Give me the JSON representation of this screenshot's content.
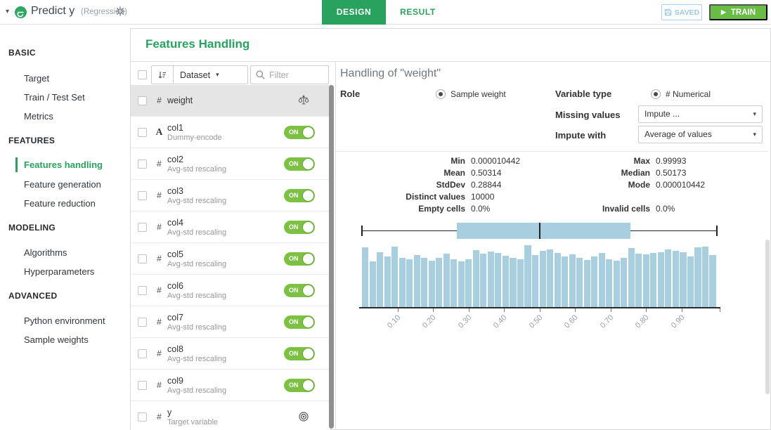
{
  "top_bar": {
    "model_title": "Predict y",
    "model_subtitle": "(Regression)",
    "tabs": [
      {
        "label": "DESIGN",
        "active": true
      },
      {
        "label": "RESULT",
        "active": false
      }
    ],
    "saved_label": "SAVED",
    "train_label": "TRAIN"
  },
  "sidebar": {
    "sections": [
      {
        "label": "BASIC",
        "items": [
          {
            "label": "Target"
          },
          {
            "label": "Train / Test Set"
          },
          {
            "label": "Metrics"
          }
        ]
      },
      {
        "label": "FEATURES",
        "items": [
          {
            "label": "Features handling",
            "active": true
          },
          {
            "label": "Feature generation"
          },
          {
            "label": "Feature reduction"
          }
        ]
      },
      {
        "label": "MODELING",
        "items": [
          {
            "label": "Algorithms"
          },
          {
            "label": "Hyperparameters"
          }
        ]
      },
      {
        "label": "ADVANCED",
        "items": [
          {
            "label": "Python environment"
          },
          {
            "label": "Sample weights"
          }
        ]
      }
    ]
  },
  "panel": {
    "title": "Features Handling"
  },
  "feature_list": {
    "sort_by": "Dataset",
    "filter_placeholder": "Filter",
    "items": [
      {
        "name": "weight",
        "type": "numeric",
        "subtitle": "",
        "right": "scale",
        "selected": true
      },
      {
        "name": "col1",
        "type": "text",
        "subtitle": "Dummy-encode",
        "right": "toggle",
        "toggle": "ON"
      },
      {
        "name": "col2",
        "type": "numeric",
        "subtitle": "Avg-std rescaling",
        "right": "toggle",
        "toggle": "ON"
      },
      {
        "name": "col3",
        "type": "numeric",
        "subtitle": "Avg-std rescaling",
        "right": "toggle",
        "toggle": "ON"
      },
      {
        "name": "col4",
        "type": "numeric",
        "subtitle": "Avg-std rescaling",
        "right": "toggle",
        "toggle": "ON"
      },
      {
        "name": "col5",
        "type": "numeric",
        "subtitle": "Avg-std rescaling",
        "right": "toggle",
        "toggle": "ON"
      },
      {
        "name": "col6",
        "type": "numeric",
        "subtitle": "Avg-std rescaling",
        "right": "toggle",
        "toggle": "ON"
      },
      {
        "name": "col7",
        "type": "numeric",
        "subtitle": "Avg-std rescaling",
        "right": "toggle",
        "toggle": "ON"
      },
      {
        "name": "col8",
        "type": "numeric",
        "subtitle": "Avg-std rescaling",
        "right": "toggle",
        "toggle": "ON"
      },
      {
        "name": "col9",
        "type": "numeric",
        "subtitle": "Avg-std rescaling",
        "right": "toggle",
        "toggle": "ON"
      },
      {
        "name": "y",
        "type": "numeric",
        "subtitle": "Target variable",
        "right": "target"
      }
    ]
  },
  "detail": {
    "title": "Handling of \"weight\"",
    "role_label": "Role",
    "role_value": "Sample weight",
    "variable_type_label": "Variable type",
    "variable_type_value": "# Numerical",
    "missing_values_label": "Missing values",
    "missing_values_value": "Impute ...",
    "impute_with_label": "Impute with",
    "impute_with_value": "Average of values",
    "stats": {
      "min_label": "Min",
      "min": "0.000010442",
      "max_label": "Max",
      "max": "0.99993",
      "mean_label": "Mean",
      "mean": "0.50314",
      "median_label": "Median",
      "median": "0.50173",
      "stddev_label": "StdDev",
      "stddev": "0.28844",
      "mode_label": "Mode",
      "mode": "0.000010442",
      "distinct_label": "Distinct values",
      "distinct": "10000",
      "empty_label": "Empty cells",
      "empty": "0.0%",
      "invalid_label": "Invalid cells",
      "invalid": "0.0%"
    }
  },
  "chart_data": {
    "type": "bar",
    "title": "",
    "xlabel": "",
    "ylabel": "",
    "x_range": [
      0,
      1
    ],
    "n_bins": 48,
    "x_tick_labels": [
      "0.10",
      "0.20",
      "0.30",
      "0.40",
      "0.50",
      "0.60",
      "0.70",
      "0.80",
      "0.90"
    ],
    "x_tick_values": [
      0.1,
      0.2,
      0.3,
      0.4,
      0.5,
      0.6,
      0.7,
      0.8,
      0.9
    ],
    "values": [
      223,
      170,
      205,
      189,
      225,
      184,
      179,
      193,
      182,
      173,
      184,
      198,
      177,
      170,
      179,
      212,
      198,
      207,
      202,
      191,
      184,
      179,
      230,
      193,
      209,
      214,
      200,
      189,
      196,
      184,
      175,
      189,
      200,
      179,
      173,
      184,
      219,
      198,
      196,
      200,
      205,
      214,
      209,
      205,
      189,
      223,
      225,
      193
    ],
    "boxplot": {
      "min": 1.0442e-05,
      "q1": 0.267,
      "median": 0.50173,
      "q3": 0.756,
      "max": 0.99993
    },
    "bar_color": "#a8cfe0",
    "grid": false,
    "legend": false
  },
  "colors": {
    "accent_green": "#2aa25f",
    "train_green": "#68bd45",
    "toggle_green": "#7dc142",
    "saved_blue": "#9cc9e7",
    "bar_blue": "#a8cfe0"
  }
}
